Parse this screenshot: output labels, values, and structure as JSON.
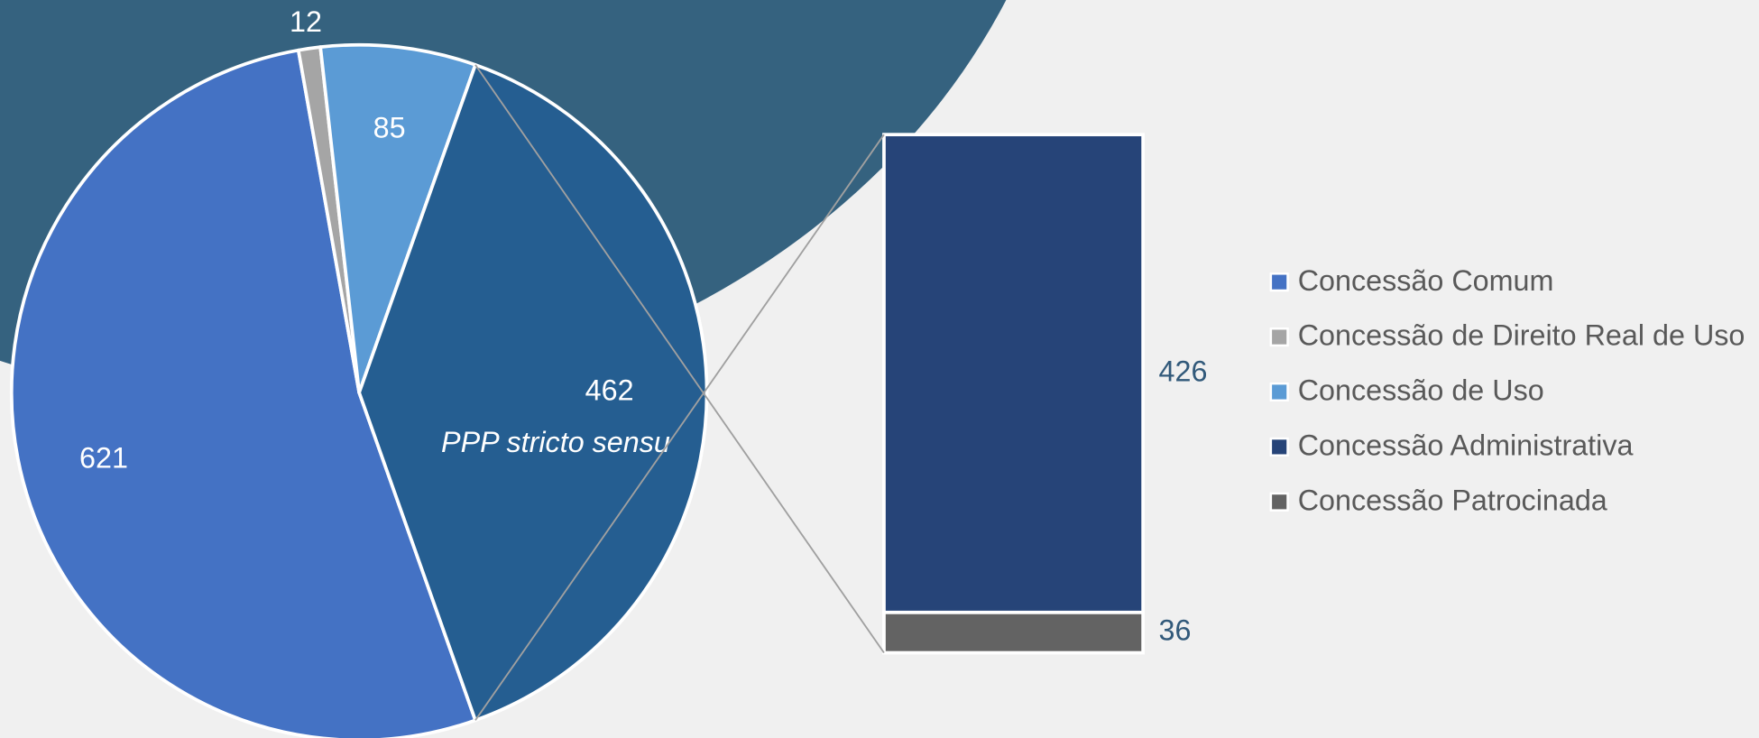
{
  "chart_data": {
    "type": "bar-of-pie",
    "categories": [
      "Concessão Comum",
      "Concessão de Direito Real de Uso",
      "Concessão de Uso",
      "Concessão Administrativa",
      "Concessão Patrocinada"
    ],
    "values": [
      621,
      12,
      85,
      426,
      36
    ],
    "colors": [
      "#4472c4",
      "#a5a5a5",
      "#5b9bd5",
      "#264478",
      "#636363"
    ],
    "other_label": "PPP stricto sensu",
    "other_value": 462,
    "other_color": "#255e91",
    "legend": "right"
  }
}
